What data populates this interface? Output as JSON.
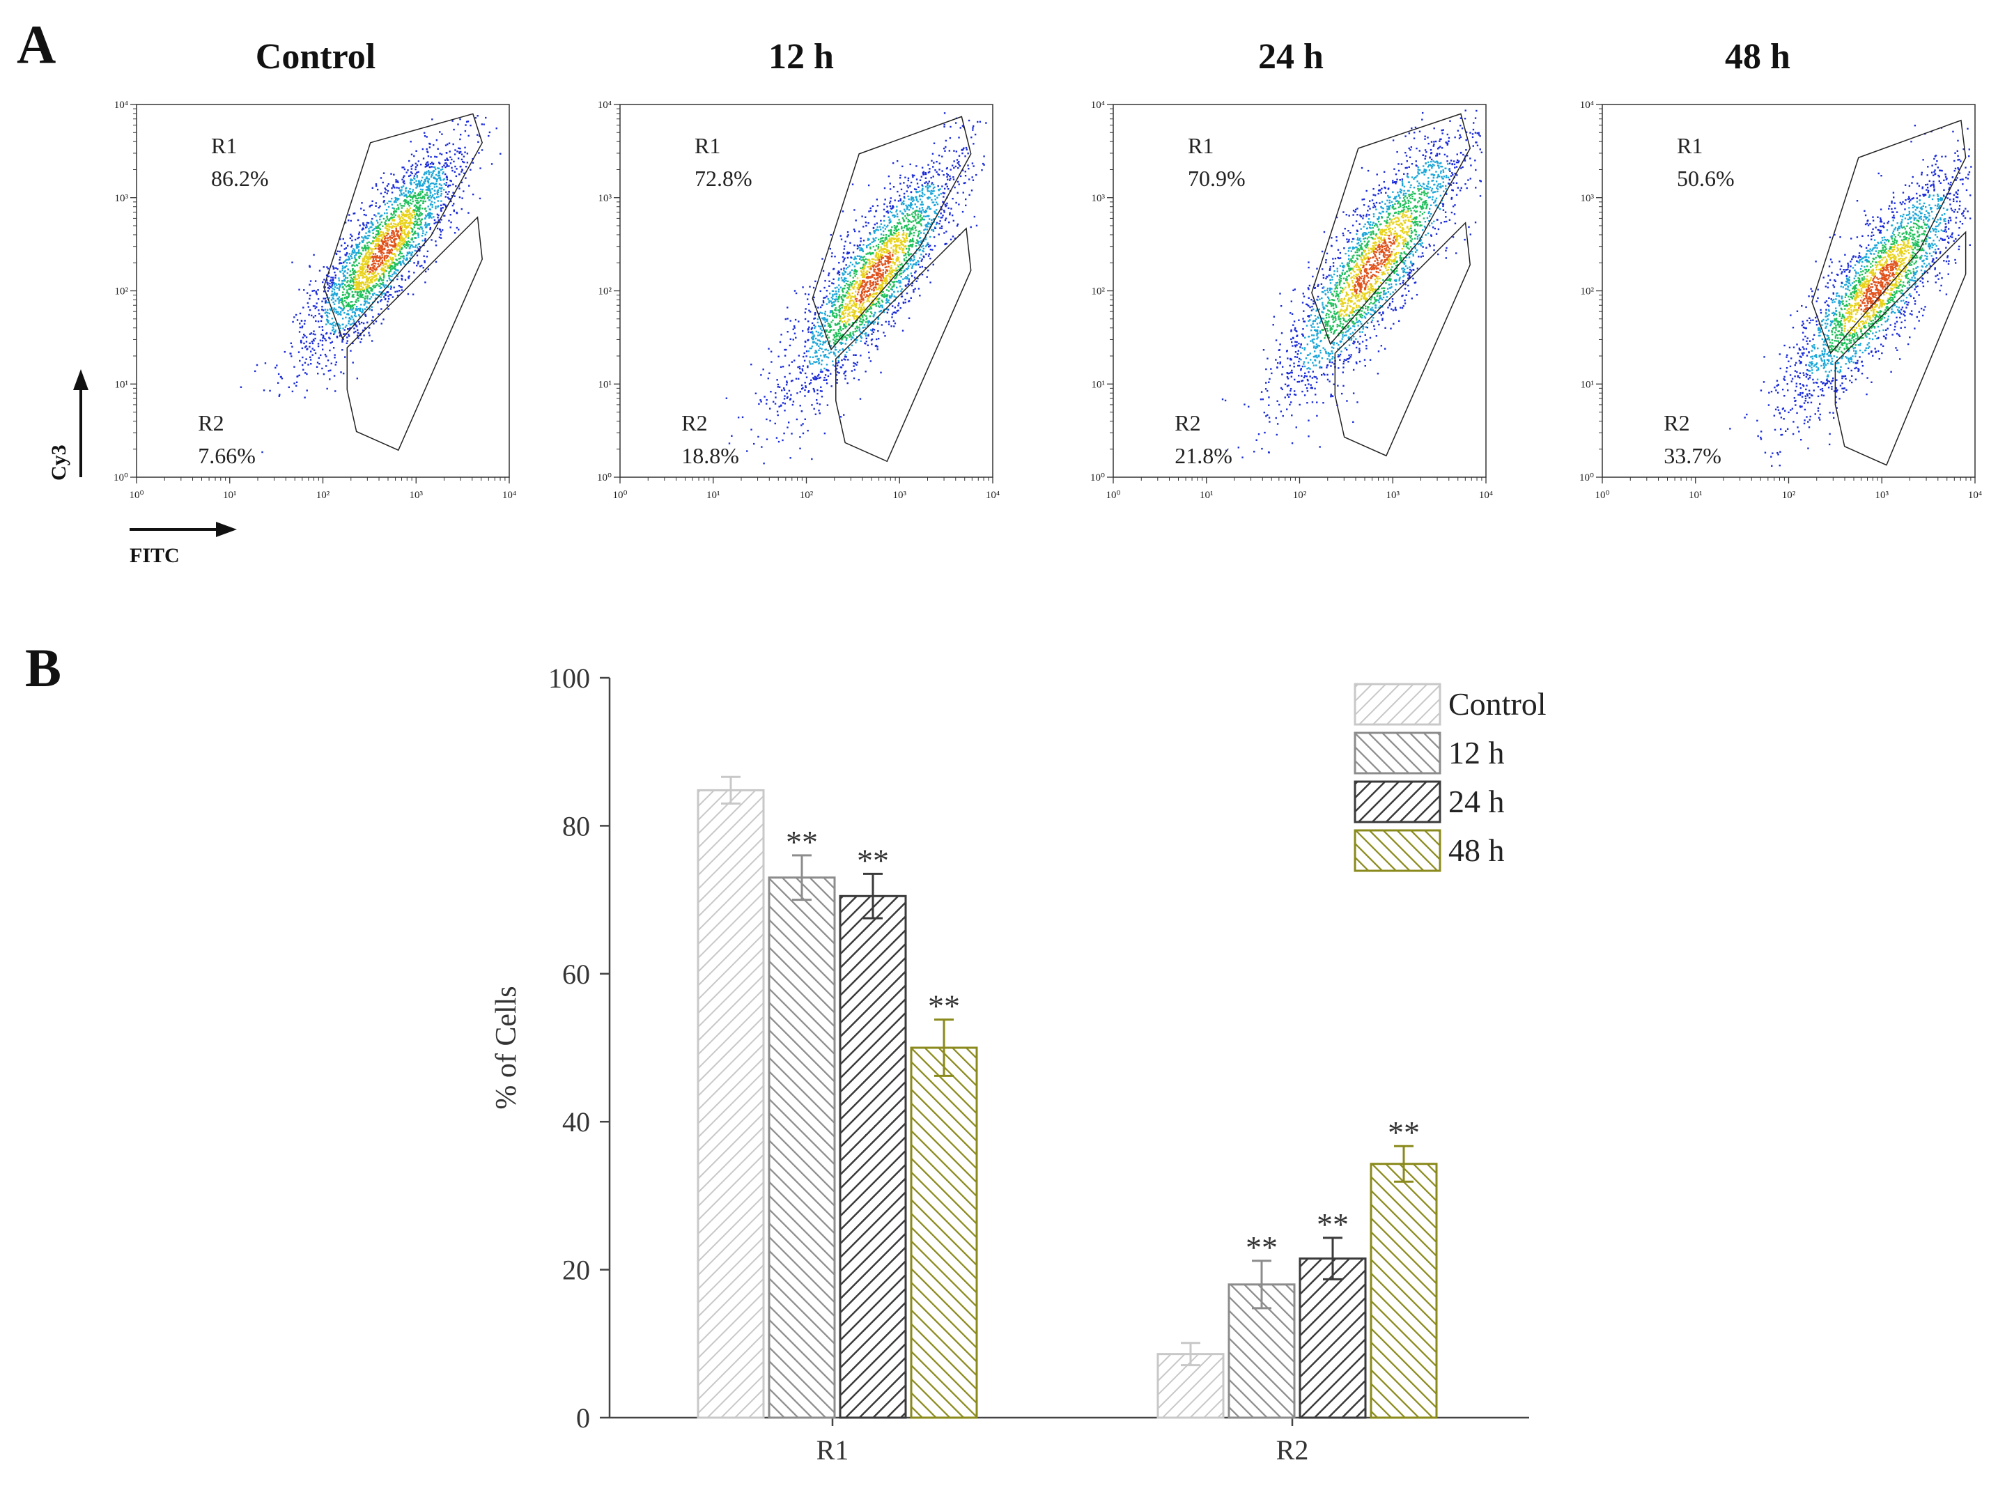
{
  "panel_a_letter": "A",
  "panel_b_letter": "B",
  "colors": {
    "control": "#c8c8c8",
    "h12": "#8c8c8c",
    "h24": "#3a3a3a",
    "h48": "#8a8a1c"
  },
  "chart_data": [
    {
      "type": "scatter",
      "title": "Control",
      "xlabel": "FITC",
      "ylabel": "Cy3",
      "x_scale": "log",
      "y_scale": "log",
      "xlim": [
        1,
        10000
      ],
      "ylim": [
        1,
        10000
      ],
      "x_ticks": [
        "10⁰",
        "10¹",
        "10²",
        "10³",
        "10⁴"
      ],
      "y_ticks": [
        "10⁰",
        "10¹",
        "10²",
        "10³",
        "10⁴"
      ],
      "regions": [
        {
          "name": "R1",
          "percent": "86.2%"
        },
        {
          "name": "R2",
          "percent": "7.66%"
        }
      ]
    },
    {
      "type": "scatter",
      "title": "12 h",
      "x_scale": "log",
      "y_scale": "log",
      "xlim": [
        1,
        10000
      ],
      "ylim": [
        1,
        10000
      ],
      "x_ticks": [
        "10⁰",
        "10¹",
        "10²",
        "10³",
        "10⁴"
      ],
      "y_ticks": [
        "10⁰",
        "10¹",
        "10²",
        "10³",
        "10⁴"
      ],
      "regions": [
        {
          "name": "R1",
          "percent": "72.8%"
        },
        {
          "name": "R2",
          "percent": "18.8%"
        }
      ]
    },
    {
      "type": "scatter",
      "title": "24 h",
      "x_scale": "log",
      "y_scale": "log",
      "xlim": [
        1,
        10000
      ],
      "ylim": [
        1,
        10000
      ],
      "x_ticks": [
        "10⁰",
        "10¹",
        "10²",
        "10³",
        "10⁴"
      ],
      "y_ticks": [
        "10⁰",
        "10¹",
        "10²",
        "10³",
        "10⁴"
      ],
      "regions": [
        {
          "name": "R1",
          "percent": "70.9%"
        },
        {
          "name": "R2",
          "percent": "21.8%"
        }
      ]
    },
    {
      "type": "scatter",
      "title": "48 h",
      "x_scale": "log",
      "y_scale": "log",
      "xlim": [
        1,
        10000
      ],
      "ylim": [
        1,
        10000
      ],
      "x_ticks": [
        "10⁰",
        "10¹",
        "10²",
        "10³",
        "10⁴"
      ],
      "y_ticks": [
        "10⁰",
        "10¹",
        "10²",
        "10³",
        "10⁴"
      ],
      "regions": [
        {
          "name": "R1",
          "percent": "50.6%"
        },
        {
          "name": "R2",
          "percent": "33.7%"
        }
      ]
    },
    {
      "type": "bar",
      "ylabel": "% of Cells",
      "xlabel": "",
      "ylim": [
        0,
        100
      ],
      "y_ticks": [
        0,
        20,
        40,
        60,
        80,
        100
      ],
      "categories": [
        "R1",
        "R2"
      ],
      "series": [
        {
          "name": "Control",
          "values": [
            84.8,
            8.6
          ],
          "errors": [
            1.8,
            1.5
          ],
          "significance": [
            "",
            ""
          ]
        },
        {
          "name": "12 h",
          "values": [
            73.0,
            18.0
          ],
          "errors": [
            3.0,
            3.2
          ],
          "significance": [
            "**",
            "**"
          ]
        },
        {
          "name": "24 h",
          "values": [
            70.5,
            21.5
          ],
          "errors": [
            3.0,
            2.8
          ],
          "significance": [
            "**",
            "**"
          ]
        },
        {
          "name": "48 h",
          "values": [
            50.0,
            34.3
          ],
          "errors": [
            3.8,
            2.4
          ],
          "significance": [
            "**",
            "**"
          ]
        }
      ],
      "legend_position": "top-right"
    }
  ]
}
